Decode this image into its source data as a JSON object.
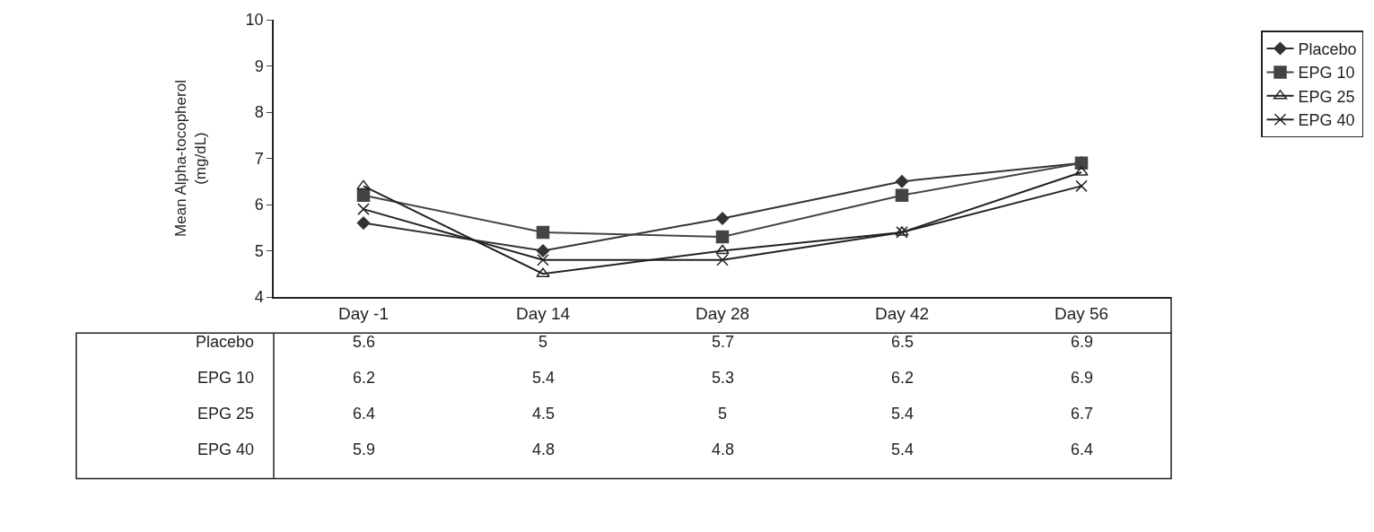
{
  "chart_data": {
    "type": "line",
    "ylabel": "Mean Alpha-tocopherol\n(mg/dL)",
    "categories": [
      "Day -1",
      "Day 14",
      "Day 28",
      "Day 42",
      "Day 56"
    ],
    "series": [
      {
        "name": "Placebo",
        "color": "#333333",
        "marker": "diamond",
        "values": [
          5.6,
          5,
          5.7,
          6.5,
          6.9
        ]
      },
      {
        "name": "EPG 10",
        "color": "#444444",
        "marker": "square",
        "values": [
          6.2,
          5.4,
          5.3,
          6.2,
          6.9
        ]
      },
      {
        "name": "EPG 25",
        "color": "#222222",
        "marker": "triangle",
        "values": [
          6.4,
          4.5,
          5,
          5.4,
          6.7
        ]
      },
      {
        "name": "EPG 40",
        "color": "#222222",
        "marker": "cross",
        "values": [
          5.9,
          4.8,
          4.8,
          5.4,
          6.4
        ]
      }
    ],
    "ylim": [
      4,
      10
    ],
    "yticks": [
      4,
      5,
      6,
      7,
      8,
      9,
      10
    ],
    "legend": "right",
    "data_labels": true,
    "line_style": "solid"
  }
}
